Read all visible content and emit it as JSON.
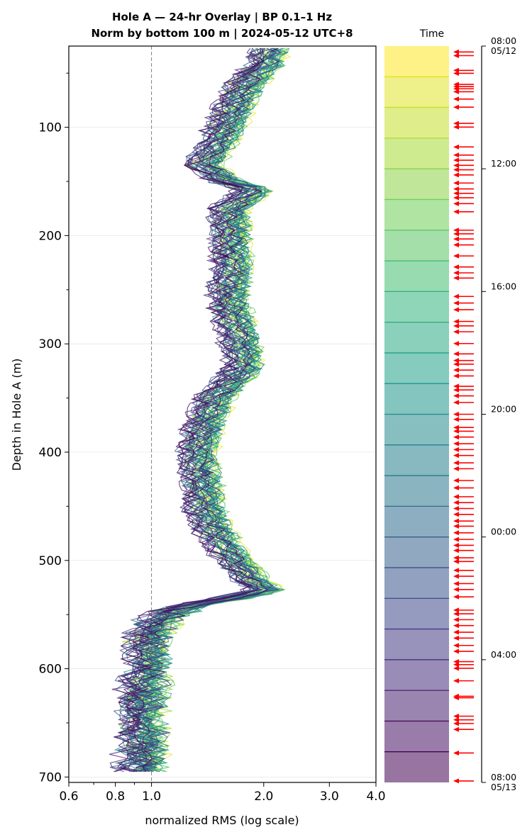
{
  "chart_data": {
    "type": "line",
    "title_line1": "Hole A — 24-hr Overlay  |  BP 0.1–1 Hz",
    "title_line2": "Norm by bottom 100 m  |  2024-05-12 UTC+8",
    "xlabel": "normalized RMS  (log scale)",
    "ylabel": "Depth in Hole A (m)",
    "x_scale": "log",
    "xlim": [
      0.6,
      4.0
    ],
    "ylim": [
      705,
      25
    ],
    "x_ticks": [
      0.6,
      0.8,
      1.0,
      2.0,
      3.0,
      4.0
    ],
    "x_tick_labels": [
      "0.6",
      "0.8",
      "1.0",
      "2.0",
      "3.0",
      "4.0"
    ],
    "y_ticks": [
      100,
      200,
      300,
      400,
      500,
      600,
      700
    ],
    "y_tick_labels": [
      "100",
      "200",
      "300",
      "400",
      "500",
      "600",
      "700"
    ],
    "reference_line_x": 1.0,
    "grid": "horizontal",
    "line_count": 48,
    "colormap": "viridis",
    "mean_profile": {
      "depth": [
        25,
        40,
        60,
        80,
        100,
        120,
        135,
        150,
        157,
        175,
        200,
        230,
        260,
        280,
        300,
        320,
        350,
        380,
        400,
        430,
        460,
        490,
        505,
        520,
        528,
        540,
        548,
        560,
        580,
        600,
        620,
        640,
        660,
        680,
        697
      ],
      "rms": [
        2.05,
        2.0,
        1.75,
        1.65,
        1.55,
        1.45,
        1.35,
        1.55,
        1.85,
        1.6,
        1.6,
        1.62,
        1.58,
        1.65,
        1.7,
        1.75,
        1.45,
        1.35,
        1.3,
        1.35,
        1.38,
        1.55,
        1.7,
        1.85,
        2.0,
        1.3,
        1.1,
        1.0,
        0.95,
        0.97,
        0.93,
        0.93,
        0.93,
        0.93,
        0.93
      ]
    },
    "colorbar": {
      "label": "Time",
      "tick_labels": [
        "08:00\n05/12",
        "12:00",
        "16:00",
        "20:00",
        "00:00",
        "04:00",
        "08:00\n05/13"
      ],
      "band_count": 24,
      "marker_color": "#ff0000",
      "marker_fractions": [
        0.008,
        0.013,
        0.033,
        0.037,
        0.052,
        0.055,
        0.058,
        0.062,
        0.072,
        0.083,
        0.105,
        0.11,
        0.137,
        0.148,
        0.155,
        0.162,
        0.168,
        0.175,
        0.186,
        0.194,
        0.2,
        0.206,
        0.214,
        0.225,
        0.25,
        0.255,
        0.262,
        0.27,
        0.285,
        0.3,
        0.308,
        0.315,
        0.34,
        0.349,
        0.358,
        0.374,
        0.38,
        0.388,
        0.404,
        0.418,
        0.427,
        0.432,
        0.44,
        0.448,
        0.462,
        0.467,
        0.475,
        0.484,
        0.5,
        0.507,
        0.518,
        0.523,
        0.531,
        0.54,
        0.548,
        0.556,
        0.566,
        0.574,
        0.59,
        0.6,
        0.612,
        0.62,
        0.628,
        0.636,
        0.645,
        0.652,
        0.661,
        0.67,
        0.678,
        0.685,
        0.695,
        0.7,
        0.712,
        0.72,
        0.73,
        0.738,
        0.748,
        0.766,
        0.771,
        0.779,
        0.787,
        0.796,
        0.804,
        0.814,
        0.822,
        0.836,
        0.84,
        0.845,
        0.862,
        0.883,
        0.885,
        0.91,
        0.915,
        0.92,
        0.928,
        0.96,
        0.998
      ]
    },
    "colors": {
      "ref_line": "#808080",
      "grid": "#e6e6e6",
      "axis": "#000000"
    }
  }
}
